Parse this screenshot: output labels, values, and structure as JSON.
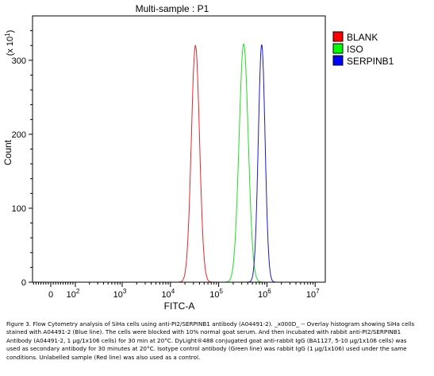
{
  "chart_data": {
    "type": "area",
    "title": "Multi-sample : P1",
    "xlabel": "FITC-A",
    "ylabel": "Count",
    "y_multiplier": "(x 10",
    "y_multiplier_exp": "1",
    "ylim": [
      0,
      360
    ],
    "yticks": [
      0,
      100,
      200,
      300
    ],
    "xscale": "biexponential",
    "xticks": [
      {
        "value": 0,
        "label": "0",
        "exp": ""
      },
      {
        "value": 100,
        "label": "10",
        "exp": "2"
      },
      {
        "value": 1000,
        "label": "10",
        "exp": "3"
      },
      {
        "value": 10000,
        "label": "10",
        "exp": "4"
      },
      {
        "value": 100000,
        "label": "10",
        "exp": "5"
      },
      {
        "value": 1000000,
        "label": "10",
        "exp": "6"
      },
      {
        "value": 10000000,
        "label": "10",
        "exp": "7"
      }
    ],
    "legend_position": "top-right",
    "series": [
      {
        "name": "BLANK",
        "color": "#e8262a",
        "fill": "#ff0000",
        "peak_x": 33000,
        "peak_count": 320,
        "sigma_decades": 0.085
      },
      {
        "name": "ISO",
        "color": "#22dd22",
        "fill": "#00ff00",
        "peak_x": 330000,
        "peak_count": 322,
        "sigma_decades": 0.095
      },
      {
        "name": "SERPINB1",
        "color": "#1a1acc",
        "fill": "#0000ff",
        "peak_x": 780000,
        "peak_count": 321,
        "sigma_decades": 0.07
      }
    ]
  },
  "caption": "Figure 3. Flow Cytometry analysis of SiHa cells using anti-PI2/SERPINB1 antibody (A04491-2). _x000D_ -- Overlay histogram showing SiHa cells stained with A04491-2 (Blue line). The cells were blocked with 10% normal goat serum. And then incubated with rabbit anti-PI2/SERPINB1 Antibody (A04491-2, 1 μg/1x106 cells) for 30 min at 20°C. DyLight®488 conjugated goat anti-rabbit IgG (BA1127, 5-10 μg/1x106 cells) was used as secondary antibody for 30 minutes at 20°C. Isotype control antibody (Green line) was rabbit IgG (1 μg/1x106) used under the same conditions. Unlabelled sample (Red line) was also used as a control."
}
